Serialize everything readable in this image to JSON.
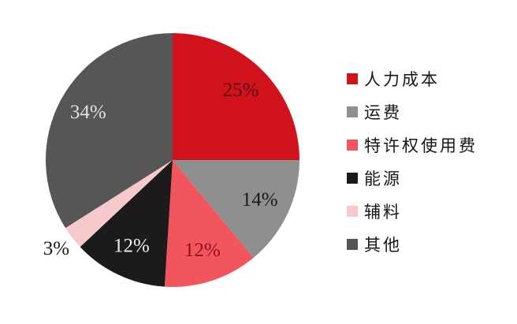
{
  "background": "#ffffff",
  "chart_data": {
    "type": "pie",
    "title": "",
    "legend_position": "right",
    "start_angle_deg": 0,
    "direction": "clockwise",
    "total": 100,
    "categories": [
      "人力成本",
      "运费",
      "特许权使用费",
      "能源",
      "辅料",
      "其他"
    ],
    "values": [
      25,
      14,
      12,
      12,
      3,
      34
    ],
    "slices": [
      {
        "label": "人力成本",
        "value": 25,
        "display": "25%",
        "color": "#cf121b",
        "label_color": "#5d1013",
        "label_inside": true
      },
      {
        "label": "运费",
        "value": 14,
        "display": "14%",
        "color": "#8f8f8f",
        "label_color": "#1a1a1a",
        "label_inside": true
      },
      {
        "label": "特许权使用费",
        "value": 12,
        "display": "12%",
        "color": "#f1555e",
        "label_color": "#8e1418",
        "label_inside": true
      },
      {
        "label": "能源",
        "value": 12,
        "display": "12%",
        "color": "#1d1a1b",
        "label_color": "#f0eef0",
        "label_inside": true
      },
      {
        "label": "辅料",
        "value": 3,
        "display": "3%",
        "color": "#f6cacd",
        "label_color": "#1a1a1a",
        "label_inside": false
      },
      {
        "label": "其他",
        "value": 34,
        "display": "34%",
        "color": "#585556",
        "label_color": "#e3e1e1",
        "label_inside": true
      }
    ]
  }
}
